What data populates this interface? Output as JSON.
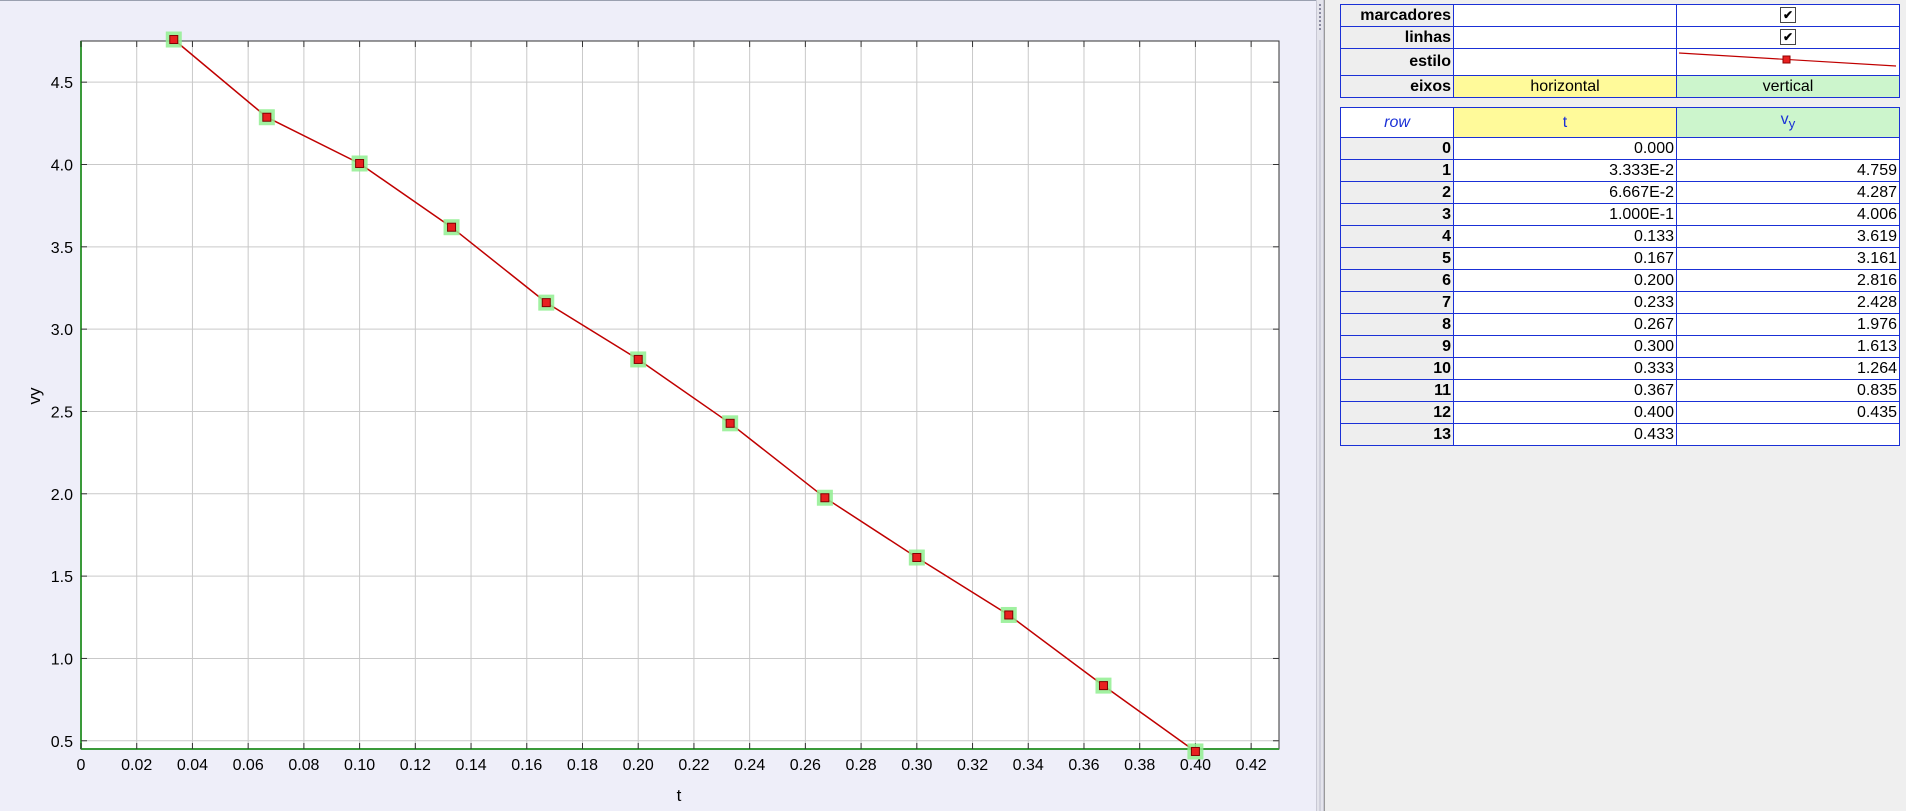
{
  "chart_data": {
    "type": "line",
    "xlabel": "t",
    "ylabel": "vy",
    "xlim": [
      0,
      0.43
    ],
    "ylim": [
      0.45,
      4.75
    ],
    "x_ticks": [
      0,
      0.02,
      0.04,
      0.06,
      0.08,
      0.1,
      0.12,
      0.14,
      0.16,
      0.18,
      0.2,
      0.22,
      0.24,
      0.26,
      0.28,
      0.3,
      0.32,
      0.34,
      0.36,
      0.38,
      0.4,
      0.42
    ],
    "x_tick_labels": [
      "0",
      "0.02",
      "0.04",
      "0.06",
      "0.08",
      "0.10",
      "0.12",
      "0.14",
      "0.16",
      "0.18",
      "0.20",
      "0.22",
      "0.24",
      "0.26",
      "0.28",
      "0.30",
      "0.32",
      "0.34",
      "0.36",
      "0.38",
      "0.40",
      "0.42"
    ],
    "y_ticks": [
      0.5,
      1.0,
      1.5,
      2.0,
      2.5,
      3.0,
      3.5,
      4.0,
      4.5
    ],
    "y_tick_labels": [
      "0.5",
      "1.0",
      "1.5",
      "2.0",
      "2.5",
      "3.0",
      "3.5",
      "4.0",
      "4.5"
    ],
    "grid": true,
    "line_color": "#c00000",
    "marker_color": "#e82020",
    "highlight_color": "#90ee90",
    "series": [
      {
        "x": [
          0.0333,
          0.0667,
          0.1,
          0.133,
          0.167,
          0.2,
          0.233,
          0.267,
          0.3,
          0.333,
          0.367,
          0.4
        ],
        "values": [
          4.759,
          4.287,
          4.006,
          3.619,
          3.161,
          2.816,
          2.428,
          1.976,
          1.613,
          1.264,
          0.835,
          0.435
        ]
      }
    ]
  },
  "properties": {
    "markers_label": "marcadores",
    "lines_label": "linhas",
    "style_label": "estilo",
    "axes_label": "eixos",
    "markers_checked": "✔",
    "lines_checked": "✔",
    "axis_horizontal": "horizontal",
    "axis_vertical": "vertical"
  },
  "table": {
    "headers": {
      "row": "row",
      "t": "t",
      "v_main": "v",
      "v_sub": "y"
    },
    "rows": [
      {
        "row": "0",
        "t": "0.000",
        "v": ""
      },
      {
        "row": "1",
        "t": "3.333E-2",
        "v": "4.759"
      },
      {
        "row": "2",
        "t": "6.667E-2",
        "v": "4.287"
      },
      {
        "row": "3",
        "t": "1.000E-1",
        "v": "4.006"
      },
      {
        "row": "4",
        "t": "0.133",
        "v": "3.619"
      },
      {
        "row": "5",
        "t": "0.167",
        "v": "3.161"
      },
      {
        "row": "6",
        "t": "0.200",
        "v": "2.816"
      },
      {
        "row": "7",
        "t": "0.233",
        "v": "2.428"
      },
      {
        "row": "8",
        "t": "0.267",
        "v": "1.976"
      },
      {
        "row": "9",
        "t": "0.300",
        "v": "1.613"
      },
      {
        "row": "10",
        "t": "0.333",
        "v": "1.264"
      },
      {
        "row": "11",
        "t": "0.367",
        "v": "0.835"
      },
      {
        "row": "12",
        "t": "0.400",
        "v": "0.435"
      },
      {
        "row": "13",
        "t": "0.433",
        "v": ""
      }
    ]
  }
}
